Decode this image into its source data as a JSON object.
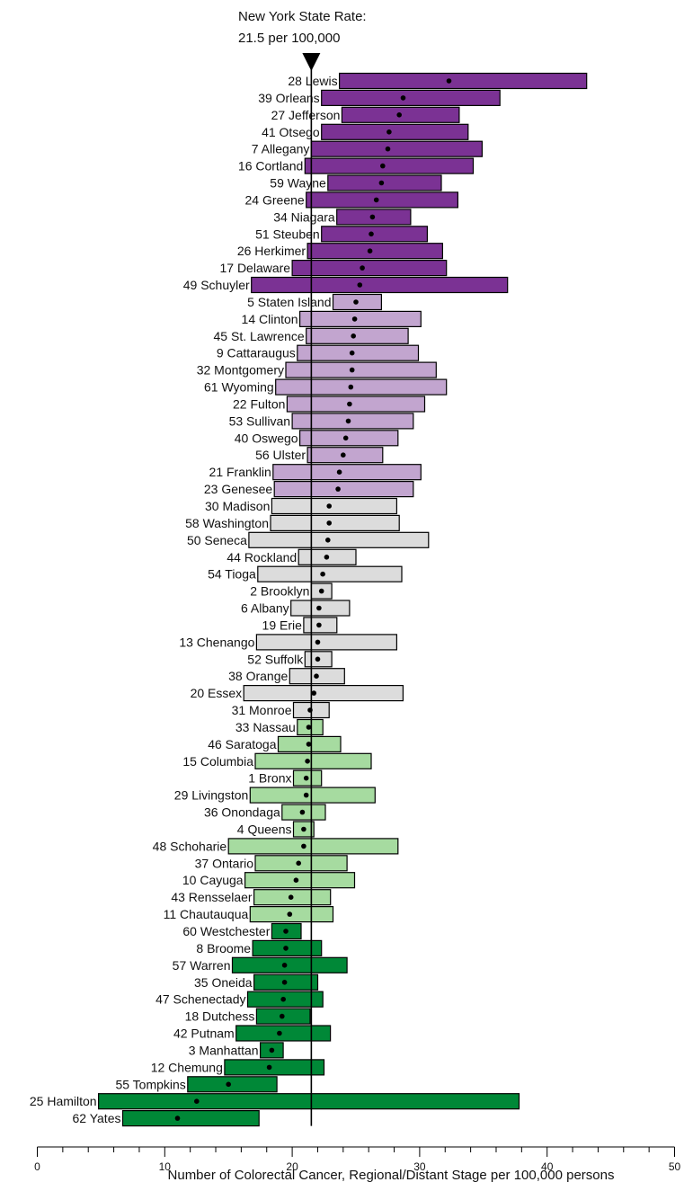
{
  "chart_data": {
    "type": "bar",
    "subtype": "horizontal confidence-interval bars with point estimates",
    "title": "",
    "xlabel": "Number of Colorectal Cancer, Regional/Distant Stage per 100,000 persons",
    "ylabel": "",
    "xlim": [
      0,
      50
    ],
    "x_ticks": [
      0,
      10,
      20,
      30,
      40,
      50
    ],
    "grid": false,
    "legend": "none",
    "reference_line": {
      "value": 21.5,
      "label_line1": "New York State Rate:",
      "label_line2": "21.5 per 100,000"
    },
    "colors": {
      "purple": "#7b3294",
      "light_purple": "#c2a5cf",
      "light_gray": "#dcdcdc",
      "light_green": "#a6dba0",
      "green": "#008837"
    },
    "counties": [
      {
        "label": "28 Lewis",
        "rate": 32.3,
        "low": 23.7,
        "high": 43.1,
        "group": "purple"
      },
      {
        "label": "39 Orleans",
        "rate": 28.7,
        "low": 22.3,
        "high": 36.3,
        "group": "purple"
      },
      {
        "label": "27 Jefferson",
        "rate": 28.4,
        "low": 23.9,
        "high": 33.1,
        "group": "purple"
      },
      {
        "label": "41 Otsego",
        "rate": 27.6,
        "low": 22.3,
        "high": 33.8,
        "group": "purple"
      },
      {
        "label": "7 Allegany",
        "rate": 27.5,
        "low": 21.5,
        "high": 34.9,
        "group": "purple"
      },
      {
        "label": "16 Cortland",
        "rate": 27.1,
        "low": 21.0,
        "high": 34.2,
        "group": "purple"
      },
      {
        "label": "59 Wayne",
        "rate": 27.0,
        "low": 22.8,
        "high": 31.7,
        "group": "purple"
      },
      {
        "label": "24 Greene",
        "rate": 26.6,
        "low": 21.1,
        "high": 33.0,
        "group": "purple"
      },
      {
        "label": "34 Niagara",
        "rate": 26.3,
        "low": 23.5,
        "high": 29.3,
        "group": "purple"
      },
      {
        "label": "51 Steuben",
        "rate": 26.2,
        "low": 22.3,
        "high": 30.6,
        "group": "purple"
      },
      {
        "label": "26 Herkimer",
        "rate": 26.1,
        "low": 21.2,
        "high": 31.8,
        "group": "purple"
      },
      {
        "label": "17 Delaware",
        "rate": 25.5,
        "low": 20.0,
        "high": 32.1,
        "group": "purple"
      },
      {
        "label": "49 Schuyler",
        "rate": 25.3,
        "low": 16.8,
        "high": 36.9,
        "group": "purple"
      },
      {
        "label": "5 Staten Island",
        "rate": 25.0,
        "low": 23.2,
        "high": 27.0,
        "group": "light_purple"
      },
      {
        "label": "14 Clinton",
        "rate": 24.9,
        "low": 20.6,
        "high": 30.1,
        "group": "light_purple"
      },
      {
        "label": "45 St. Lawrence",
        "rate": 24.8,
        "low": 21.1,
        "high": 29.1,
        "group": "light_purple"
      },
      {
        "label": "9 Cattaraugus",
        "rate": 24.7,
        "low": 20.4,
        "high": 29.9,
        "group": "light_purple"
      },
      {
        "label": "32 Montgomery",
        "rate": 24.7,
        "low": 19.5,
        "high": 31.3,
        "group": "light_purple"
      },
      {
        "label": "61 Wyoming",
        "rate": 24.6,
        "low": 18.7,
        "high": 32.1,
        "group": "light_purple"
      },
      {
        "label": "22 Fulton",
        "rate": 24.5,
        "low": 19.6,
        "high": 30.4,
        "group": "light_purple"
      },
      {
        "label": "53 Sullivan",
        "rate": 24.4,
        "low": 20.0,
        "high": 29.5,
        "group": "light_purple"
      },
      {
        "label": "40 Oswego",
        "rate": 24.2,
        "low": 20.6,
        "high": 28.3,
        "group": "light_purple"
      },
      {
        "label": "56 Ulster",
        "rate": 24.0,
        "low": 21.2,
        "high": 27.1,
        "group": "light_purple"
      },
      {
        "label": "21 Franklin",
        "rate": 23.7,
        "low": 18.5,
        "high": 30.1,
        "group": "light_purple"
      },
      {
        "label": "23 Genesee",
        "rate": 23.6,
        "low": 18.6,
        "high": 29.5,
        "group": "light_purple"
      },
      {
        "label": "30 Madison",
        "rate": 22.9,
        "low": 18.4,
        "high": 28.2,
        "group": "light_gray"
      },
      {
        "label": "58 Washington",
        "rate": 22.9,
        "low": 18.3,
        "high": 28.4,
        "group": "light_gray"
      },
      {
        "label": "50 Seneca",
        "rate": 22.8,
        "low": 16.6,
        "high": 30.7,
        "group": "light_gray"
      },
      {
        "label": "44 Rockland",
        "rate": 22.7,
        "low": 20.5,
        "high": 25.0,
        "group": "light_gray"
      },
      {
        "label": "54 Tioga",
        "rate": 22.4,
        "low": 17.3,
        "high": 28.6,
        "group": "light_gray"
      },
      {
        "label": "2 Brooklyn",
        "rate": 22.3,
        "low": 21.5,
        "high": 23.1,
        "group": "light_gray"
      },
      {
        "label": "6 Albany",
        "rate": 22.1,
        "low": 19.9,
        "high": 24.5,
        "group": "light_gray"
      },
      {
        "label": "19 Erie",
        "rate": 22.1,
        "low": 20.9,
        "high": 23.5,
        "group": "light_gray"
      },
      {
        "label": "13 Chenango",
        "rate": 22.0,
        "low": 17.2,
        "high": 28.2,
        "group": "light_gray"
      },
      {
        "label": "52 Suffolk",
        "rate": 22.0,
        "low": 21.0,
        "high": 23.1,
        "group": "light_gray"
      },
      {
        "label": "38 Orange",
        "rate": 21.9,
        "low": 19.8,
        "high": 24.1,
        "group": "light_gray"
      },
      {
        "label": "20 Essex",
        "rate": 21.7,
        "low": 16.2,
        "high": 28.7,
        "group": "light_gray"
      },
      {
        "label": "31 Monroe",
        "rate": 21.4,
        "low": 20.1,
        "high": 22.9,
        "group": "light_gray"
      },
      {
        "label": "33 Nassau",
        "rate": 21.3,
        "low": 20.4,
        "high": 22.4,
        "group": "light_green"
      },
      {
        "label": "46 Saratoga",
        "rate": 21.3,
        "low": 18.9,
        "high": 23.8,
        "group": "light_green"
      },
      {
        "label": "15 Columbia",
        "rate": 21.2,
        "low": 17.1,
        "high": 26.2,
        "group": "light_green"
      },
      {
        "label": "1 Bronx",
        "rate": 21.1,
        "low": 20.1,
        "high": 22.3,
        "group": "light_green"
      },
      {
        "label": "29 Livingston",
        "rate": 21.1,
        "low": 16.7,
        "high": 26.5,
        "group": "light_green"
      },
      {
        "label": "36 Onondaga",
        "rate": 20.8,
        "low": 19.2,
        "high": 22.6,
        "group": "light_green"
      },
      {
        "label": "4 Queens",
        "rate": 20.9,
        "low": 20.1,
        "high": 21.7,
        "group": "light_green"
      },
      {
        "label": "48 Schoharie",
        "rate": 20.9,
        "low": 15.0,
        "high": 28.3,
        "group": "light_green"
      },
      {
        "label": "37 Ontario",
        "rate": 20.5,
        "low": 17.1,
        "high": 24.3,
        "group": "light_green"
      },
      {
        "label": "10 Cayuga",
        "rate": 20.3,
        "low": 16.3,
        "high": 24.9,
        "group": "light_green"
      },
      {
        "label": "43 Rensselaer",
        "rate": 19.9,
        "low": 17.0,
        "high": 23.0,
        "group": "light_green"
      },
      {
        "label": "11 Chautauqua",
        "rate": 19.8,
        "low": 16.7,
        "high": 23.2,
        "group": "light_green"
      },
      {
        "label": "60 Westchester",
        "rate": 19.5,
        "low": 18.4,
        "high": 20.7,
        "group": "green"
      },
      {
        "label": "8 Broome",
        "rate": 19.5,
        "low": 16.9,
        "high": 22.3,
        "group": "green"
      },
      {
        "label": "57 Warren",
        "rate": 19.4,
        "low": 15.3,
        "high": 24.3,
        "group": "green"
      },
      {
        "label": "35 Oneida",
        "rate": 19.4,
        "low": 17.0,
        "high": 22.0,
        "group": "green"
      },
      {
        "label": "47 Schenectady",
        "rate": 19.3,
        "low": 16.5,
        "high": 22.4,
        "group": "green"
      },
      {
        "label": "18 Dutchess",
        "rate": 19.2,
        "low": 17.2,
        "high": 21.4,
        "group": "green"
      },
      {
        "label": "42 Putnam",
        "rate": 19.0,
        "low": 15.6,
        "high": 23.0,
        "group": "green"
      },
      {
        "label": "3 Manhattan",
        "rate": 18.4,
        "low": 17.5,
        "high": 19.3,
        "group": "green"
      },
      {
        "label": "12 Chemung",
        "rate": 18.2,
        "low": 14.7,
        "high": 22.5,
        "group": "green"
      },
      {
        "label": "55 Tompkins",
        "rate": 15.0,
        "low": 11.8,
        "high": 18.8,
        "group": "green"
      },
      {
        "label": "25 Hamilton",
        "rate": 12.5,
        "low": 4.8,
        "high": 37.8,
        "group": "green"
      },
      {
        "label": "62 Yates",
        "rate": 11.0,
        "low": 6.7,
        "high": 17.4,
        "group": "green"
      }
    ]
  }
}
